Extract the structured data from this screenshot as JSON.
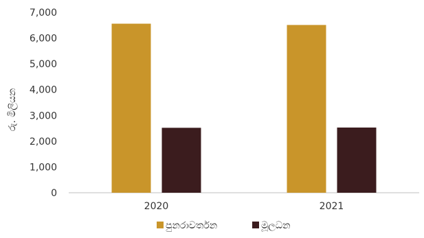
{
  "chart_data": {
    "type": "bar",
    "title": "",
    "xlabel": "",
    "ylabel": "රු. මිලියන",
    "categories": [
      "2020",
      "2021"
    ],
    "series": [
      {
        "name": "පුනරාවර්තන",
        "values": [
          6560,
          6510
        ],
        "color": "#C9952A"
      },
      {
        "name": "මූලධන",
        "values": [
          2520,
          2530
        ],
        "color": "#3B1C1E"
      }
    ],
    "ylim": [
      0,
      7000
    ],
    "yticks": [
      "0",
      "1,000",
      "2,000",
      "3,000",
      "4,000",
      "5,000",
      "6,000",
      "7,000"
    ],
    "grid": false,
    "legend_position": "bottom"
  }
}
